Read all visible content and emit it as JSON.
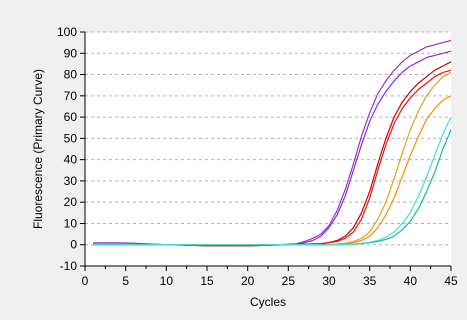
{
  "chart_data": {
    "type": "line",
    "title": "",
    "xlabel": "Cycles",
    "ylabel": "Fluorescence (Primary Curve)",
    "xlim": [
      0,
      45
    ],
    "ylim": [
      -10,
      100
    ],
    "x_ticks": [
      0,
      5,
      10,
      15,
      20,
      25,
      30,
      35,
      40,
      45
    ],
    "y_ticks": [
      -10,
      0,
      10,
      20,
      30,
      40,
      50,
      60,
      70,
      80,
      90,
      100
    ],
    "grid": "horizontal dashed",
    "legend": "none",
    "background": "#ffffff",
    "series": [
      {
        "color": "#8a2be2",
        "x": [
          1,
          5,
          10,
          15,
          20,
          24,
          26,
          27,
          28,
          29,
          30,
          31,
          32,
          33,
          34,
          35,
          36,
          37,
          38,
          39,
          40,
          41,
          42,
          43,
          44,
          45
        ],
        "values": [
          0.8,
          0.8,
          0,
          0,
          0,
          0,
          0.3,
          1,
          2,
          4,
          8,
          14,
          23,
          35,
          47,
          58,
          66,
          72,
          77,
          81,
          84,
          86,
          88,
          89,
          90,
          91
        ]
      },
      {
        "color": "#9932cc",
        "x": [
          1,
          5,
          10,
          15,
          20,
          24,
          26,
          27,
          28,
          29,
          30,
          31,
          32,
          33,
          34,
          35,
          36,
          37,
          38,
          39,
          40,
          41,
          42,
          43,
          44,
          45
        ],
        "values": [
          0.8,
          0.8,
          0,
          0,
          0,
          0,
          0.5,
          1.5,
          3,
          5,
          9,
          16,
          26,
          38,
          51,
          62,
          71,
          77,
          82,
          86,
          89,
          91,
          93,
          94,
          95,
          96
        ]
      },
      {
        "color": "#cc0000",
        "x": [
          1,
          5,
          10,
          15,
          20,
          25,
          29,
          30,
          31,
          32,
          33,
          34,
          35,
          36,
          37,
          38,
          39,
          40,
          41,
          42,
          43,
          44,
          45
        ],
        "values": [
          0,
          0,
          0,
          -0.5,
          -0.5,
          0,
          0.5,
          1,
          2,
          4,
          8,
          15,
          25,
          38,
          50,
          60,
          67,
          72,
          76,
          79,
          82,
          84,
          86
        ]
      },
      {
        "color": "#ee1111",
        "x": [
          1,
          5,
          10,
          15,
          20,
          25,
          29,
          30,
          31,
          32,
          33,
          34,
          35,
          36,
          37,
          38,
          39,
          40,
          41,
          42,
          43,
          44,
          45
        ],
        "values": [
          0,
          0,
          0,
          -0.5,
          -0.5,
          0,
          0.5,
          1,
          1.5,
          3,
          6,
          12,
          22,
          35,
          47,
          57,
          64,
          69,
          73,
          76,
          79,
          81,
          82
        ]
      },
      {
        "color": "#daa520",
        "x": [
          1,
          5,
          10,
          15,
          20,
          25,
          30,
          31,
          32,
          33,
          34,
          35,
          36,
          37,
          38,
          39,
          40,
          41,
          42,
          43,
          44,
          45
        ],
        "values": [
          0,
          0,
          0,
          0,
          0,
          0,
          0,
          0.3,
          0.7,
          1.5,
          3,
          6,
          12,
          20,
          31,
          43,
          54,
          63,
          70,
          75,
          79,
          81
        ]
      },
      {
        "color": "#ff8c00",
        "x": [
          1,
          5,
          10,
          15,
          20,
          25,
          30,
          31,
          32,
          33,
          34,
          35,
          36,
          37,
          38,
          39,
          40,
          41,
          42,
          43,
          44,
          45
        ],
        "values": [
          0,
          0,
          0,
          0,
          0,
          0,
          0,
          0.2,
          0.5,
          1,
          2,
          4,
          8,
          14,
          22,
          32,
          42,
          51,
          59,
          64,
          68,
          70
        ]
      },
      {
        "color": "#20b2aa",
        "x": [
          1,
          5,
          10,
          15,
          20,
          25,
          30,
          32,
          33,
          34,
          35,
          36,
          37,
          38,
          39,
          40,
          41,
          42,
          43,
          44,
          45
        ],
        "values": [
          0,
          0,
          0,
          0,
          0,
          0,
          0,
          0,
          0.2,
          0.5,
          1,
          1.5,
          2.5,
          4,
          7,
          11,
          17,
          25,
          34,
          45,
          54
        ]
      },
      {
        "color": "#40e0d0",
        "x": [
          1,
          5,
          10,
          15,
          20,
          25,
          30,
          32,
          33,
          34,
          35,
          36,
          37,
          38,
          39,
          40,
          41,
          42,
          43,
          44,
          45
        ],
        "values": [
          0,
          0,
          0,
          0,
          0,
          0,
          0,
          0,
          0.3,
          0.7,
          1.2,
          2,
          3.5,
          6,
          10,
          15,
          23,
          32,
          42,
          52,
          60
        ]
      }
    ]
  }
}
